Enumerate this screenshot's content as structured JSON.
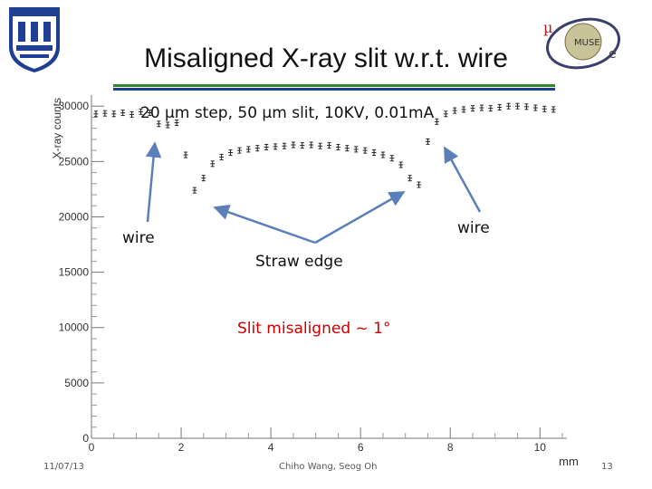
{
  "slide": {
    "title": "Misaligned X-ray slit w.r.t. wire",
    "date": "11/07/13",
    "authors": "Chiho Wang, Seog Oh",
    "page_number": "13"
  },
  "colors": {
    "accent_green": "#2f8a2c",
    "accent_blue": "#1a3f8a",
    "arrow_blue": "#5b7fb8",
    "annotation_red": "#cc0000",
    "duke_blue": "#1f3f95"
  },
  "chart_data": {
    "type": "scatter",
    "title": "",
    "xlabel": "mm",
    "ylabel": "X-ray counts",
    "xlim": [
      0,
      10.6
    ],
    "ylim": [
      0,
      31000
    ],
    "x_ticks": [
      "0",
      "2",
      "4",
      "6",
      "8",
      "10"
    ],
    "y_ticks": [
      "0",
      "5000",
      "10000",
      "15000",
      "20000",
      "25000",
      "30000"
    ],
    "grid": false,
    "series": [
      {
        "x": [
          0.1,
          0.3,
          0.5,
          0.7,
          0.9,
          1.1,
          1.3,
          1.5,
          1.7,
          1.9,
          2.1,
          2.3,
          2.5,
          2.7,
          2.9,
          3.1,
          3.3,
          3.5,
          3.7,
          3.9,
          4.1,
          4.3,
          4.5,
          4.7,
          4.9,
          5.1,
          5.3,
          5.5,
          5.7,
          5.9,
          6.1,
          6.3,
          6.5,
          6.7,
          6.9,
          7.1,
          7.3,
          7.5,
          7.7,
          7.9,
          8.1,
          8.3,
          8.5,
          8.7,
          8.9,
          9.1,
          9.3,
          9.5,
          9.7,
          9.9,
          10.1,
          10.3
        ],
        "y": [
          29300,
          29350,
          29300,
          29400,
          29250,
          29500,
          29400,
          28400,
          28300,
          28500,
          25600,
          22400,
          23500,
          24800,
          25400,
          25800,
          26000,
          26100,
          26200,
          26300,
          26350,
          26400,
          26500,
          26450,
          26500,
          26400,
          26450,
          26300,
          26200,
          26100,
          26000,
          25800,
          25600,
          25300,
          24700,
          23500,
          22900,
          26800,
          28600,
          29300,
          29600,
          29700,
          29800,
          29850,
          29800,
          29900,
          30000,
          30000,
          29950,
          29850,
          29750,
          29700
        ],
        "marker": "x-error-bar"
      }
    ],
    "annotations": {
      "conditions": "20 µm step, 50 µm slit, 10KV, 0.01mA",
      "wire_left": "wire",
      "wire_right": "wire",
      "straw_edge": "Straw edge",
      "misaligned": "Slit misaligned ~ 1°"
    }
  }
}
